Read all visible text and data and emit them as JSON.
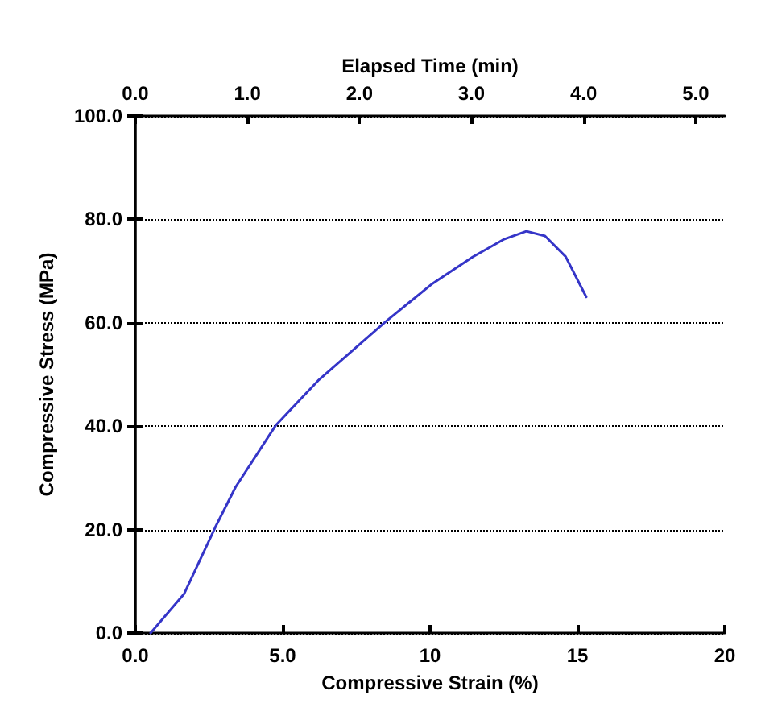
{
  "chart_data": {
    "type": "line",
    "xlabel": "Compressive Strain (%)",
    "ylabel": "Compressive Stress (MPa)",
    "x2label": "Elapsed Time (min)",
    "x": [
      0.52,
      1.66,
      2.71,
      3.4,
      4.77,
      6.2,
      8.47,
      10.04,
      11.44,
      12.49,
      13.27,
      13.9,
      14.6,
      15.3
    ],
    "series": [
      {
        "color": "#3535c8",
        "values": [
          0,
          7.6,
          20.4,
          28.2,
          40.2,
          48.8,
          60.1,
          67.4,
          72.7,
          76.1,
          77.7,
          76.8,
          72.8,
          65.0
        ]
      }
    ],
    "xlim": [
      0,
      20
    ],
    "xticks": [
      {
        "value": 0,
        "label": "0.0"
      },
      {
        "value": 5,
        "label": "5.0"
      },
      10,
      15,
      20
    ],
    "ylim": [
      0,
      100
    ],
    "yticks": [
      {
        "value": 0,
        "label": "0.0"
      },
      {
        "value": 20,
        "label": "20.0"
      },
      {
        "value": 40,
        "label": "40.0"
      },
      {
        "value": 60,
        "label": "60.0"
      },
      {
        "value": 80,
        "label": "80.0"
      },
      {
        "value": 100,
        "label": "100.0"
      }
    ],
    "x2lim": [
      0,
      5.26
    ],
    "x2ticks": [
      {
        "value": 0,
        "label": "0.0"
      },
      {
        "value": 1,
        "label": "1.0"
      },
      {
        "value": 2,
        "label": "2.0"
      },
      {
        "value": 3,
        "label": "3.0"
      },
      {
        "value": 4,
        "label": "4.0"
      },
      {
        "value": 5,
        "label": "5.0"
      }
    ],
    "grid": "y",
    "marker": "none",
    "line_style": "solid"
  }
}
